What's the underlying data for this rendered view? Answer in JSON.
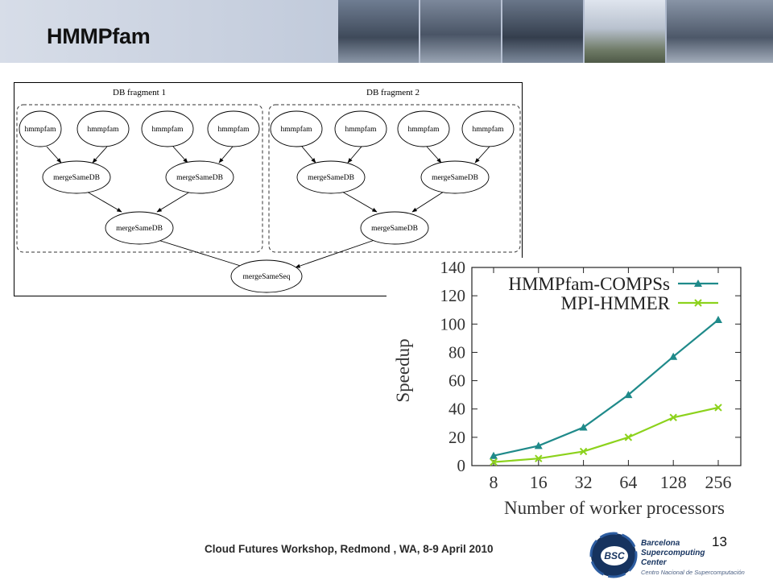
{
  "slide": {
    "title": "HMMPfam",
    "footer": "Cloud Futures Workshop, Redmond , WA, 8-9 April 2010",
    "page_number": "13"
  },
  "logo": {
    "badge": "BSC",
    "line1": "Barcelona",
    "line2": "Supercomputing",
    "line3": "Center",
    "line4": "Centro Nacional de Supercomputación"
  },
  "diagram": {
    "fragment1_label": "DB fragment 1",
    "fragment2_label": "DB fragment 2",
    "nodes": {
      "f1_leaf": [
        "hmmpfam",
        "hmmpfam",
        "hmmpfam",
        "hmmpfam"
      ],
      "f1_mid": [
        "mergeSameDB",
        "mergeSameDB"
      ],
      "f1_root": "mergeSameDB",
      "f2_leaf": [
        "hmmpfam",
        "hmmpfam",
        "hmmpfam",
        "hmmpfam"
      ],
      "f2_mid": [
        "mergeSameDB",
        "mergeSameDB"
      ],
      "f2_root": "mergeSameDB",
      "final": "mergeSameSeq"
    }
  },
  "chart_data": {
    "type": "line",
    "xlabel": "Number of worker processors",
    "ylabel": "Speedup",
    "categories": [
      "8",
      "16",
      "32",
      "64",
      "128",
      "256"
    ],
    "ylim": [
      0,
      140
    ],
    "yticks": [
      0,
      20,
      40,
      60,
      80,
      100,
      120,
      140
    ],
    "grid": false,
    "legend_position": "top-right",
    "series": [
      {
        "name": "HMMPfam-COMPSs",
        "values": [
          7,
          14,
          27,
          50,
          77,
          103
        ],
        "color": "#1f8a8a",
        "marker": "triangle"
      },
      {
        "name": "MPI-HMMER",
        "values": [
          2.5,
          5,
          10,
          20,
          34,
          41
        ],
        "color": "#8cd21c",
        "marker": "x"
      }
    ]
  },
  "colors": {
    "header_bg": "#c3ccdc",
    "logo_blue": "#16335f"
  }
}
